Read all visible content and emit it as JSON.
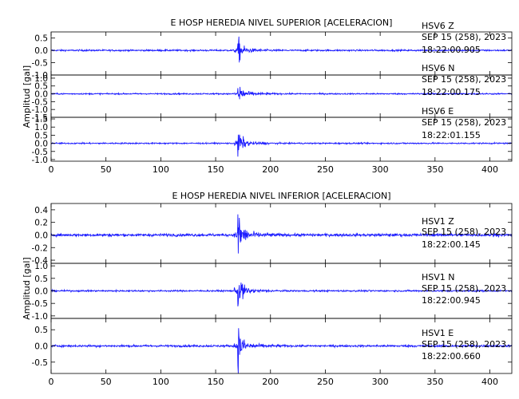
{
  "chart_data": [
    {
      "type": "line",
      "title": "E HOSP HEREDIA NIVEL SUPERIOR [ACELERACION]",
      "ylabel": "Amplitud [gal]",
      "xlim": [
        0,
        420
      ],
      "x_ticks": [
        0,
        50,
        100,
        150,
        200,
        250,
        300,
        350,
        400
      ],
      "event_time": 170,
      "color": "#1a1aff",
      "panels": [
        {
          "name": "HSV6 Z",
          "label_lines": [
            "HSV6    Z",
            "SEP 15 (258), 2023",
            "18:22:00.905"
          ],
          "ylim": [
            -1.0,
            0.75
          ],
          "y_ticks": [
            -1.0,
            -0.5,
            0.0,
            0.5
          ],
          "y_tick_labels": [
            "-1.0",
            "-0.5",
            "0.0",
            "0.5"
          ],
          "noise": 0.03,
          "peak": 0.6
        },
        {
          "name": "HSV6 N",
          "label_lines": [
            "HSV6    N",
            "SEP 15 (258), 2023",
            "18:22:00.175"
          ],
          "ylim": [
            -1.5,
            1.2
          ],
          "y_ticks": [
            -1.5,
            -1.0,
            -0.5,
            0.0,
            0.5,
            1.0
          ],
          "y_tick_labels": [
            "-1.5",
            "-1.0",
            "-0.5",
            "0.0",
            "0.5",
            "1.0"
          ],
          "noise": 0.04,
          "peak": 1.0
        },
        {
          "name": "HSV6 E",
          "label_lines": [
            "HSV6    E",
            "SEP 15 (258), 2023",
            "18:22:01.155"
          ],
          "ylim": [
            -1.1,
            1.6
          ],
          "y_ticks": [
            -1.0,
            -0.5,
            0.0,
            0.5,
            1.0,
            1.5
          ],
          "y_tick_labels": [
            "-1.0",
            "-0.5",
            "0.0",
            "0.5",
            "1.0",
            "1.5"
          ],
          "noise": 0.04,
          "peak": 1.1
        }
      ]
    },
    {
      "type": "line",
      "title": "E HOSP HEREDIA NIVEL INFERIOR [ACELERACION]",
      "ylabel": "Amplitud [gal]",
      "xlim": [
        0,
        420
      ],
      "x_ticks": [
        0,
        50,
        100,
        150,
        200,
        250,
        300,
        350,
        400
      ],
      "event_time": 170,
      "color": "#1a1aff",
      "panels": [
        {
          "name": "HSV1 Z",
          "label_lines": [
            "HSV1    Z",
            "SEP 15 (258), 2023",
            "18:22:00.145"
          ],
          "ylim": [
            -0.45,
            0.5
          ],
          "y_ticks": [
            -0.4,
            -0.2,
            0.0,
            0.2,
            0.4
          ],
          "y_tick_labels": [
            "-0.4",
            "-0.2",
            "0.0",
            "0.2",
            "0.4"
          ],
          "noise": 0.02,
          "peak": 0.42
        },
        {
          "name": "HSV1 N",
          "label_lines": [
            "HSV1    N",
            "SEP 15 (258), 2023",
            "18:22:00.945"
          ],
          "ylim": [
            -1.1,
            1.1
          ],
          "y_ticks": [
            -1.0,
            -0.5,
            0.0,
            0.5,
            1.0
          ],
          "y_tick_labels": [
            "-1.0",
            "-0.5",
            "0.0",
            "0.5",
            "1.0"
          ],
          "noise": 0.03,
          "peak": 0.95
        },
        {
          "name": "HSV1 E",
          "label_lines": [
            "HSV1    E",
            "SEP 15 (258), 2023",
            "18:22:00.660"
          ],
          "ylim": [
            -0.85,
            0.85
          ],
          "y_ticks": [
            -0.5,
            0.0,
            0.5
          ],
          "y_tick_labels": [
            "-0.5",
            "0.0",
            "0.5"
          ],
          "noise": 0.03,
          "peak": 0.7
        }
      ]
    }
  ]
}
